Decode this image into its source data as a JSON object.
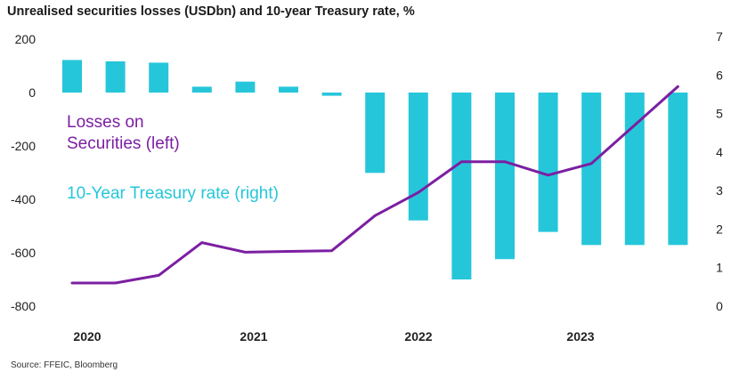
{
  "title": "Unrealised securities losses (USDbn) and 10-year Treasury rate, %",
  "source": "Source: FFEIC, Bloomberg",
  "colors": {
    "bars": "#26C6DA",
    "line": "#7B1FA2"
  },
  "annotations": {
    "losses_line1": "Losses on",
    "losses_line2": "Securities (left)",
    "treasury": "10-Year Treasury rate (right)"
  },
  "chart_data": {
    "type": "bar+line",
    "x_labels": [
      "2020",
      "2021",
      "2022",
      "2023"
    ],
    "left_axis": {
      "ticks": [
        "200",
        "0",
        "-200",
        "-400",
        "-600",
        "-800"
      ],
      "ylim": [
        -800,
        200
      ]
    },
    "right_axis": {
      "ticks": [
        "7",
        "6",
        "5",
        "4",
        "3",
        "2",
        "1",
        "0"
      ],
      "ylim": [
        0,
        7
      ]
    },
    "series": [
      {
        "name": "Losses on Securities (left)",
        "type": "bar",
        "axis": "left",
        "values": [
          122,
          117,
          112,
          22,
          41,
          22,
          -12,
          -301,
          -479,
          -700,
          -624,
          -522,
          -571,
          -571,
          -571
        ]
      },
      {
        "name": "10-Year Treasury rate (right)",
        "type": "line",
        "axis": "right",
        "values": [
          0.6,
          0.6,
          0.8,
          1.65,
          1.4,
          1.42,
          1.44,
          2.35,
          2.95,
          3.75,
          3.75,
          3.4,
          3.7,
          4.7,
          5.7
        ]
      }
    ]
  }
}
